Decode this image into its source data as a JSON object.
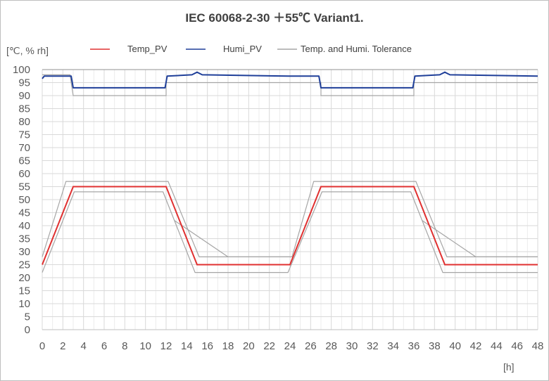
{
  "chart_data": {
    "type": "line",
    "title": "IEC 60068-2-30 ＋55℃ Variant1.",
    "ylabel": "[℃, % rh]",
    "xlabel": "[h]",
    "xlim": [
      0,
      48
    ],
    "ylim": [
      0,
      100
    ],
    "x_ticks": [
      "0",
      "2",
      "4",
      "6",
      "8",
      "10",
      "12",
      "14",
      "16",
      "18",
      "20",
      "22",
      "24",
      "26",
      "28",
      "30",
      "32",
      "34",
      "36",
      "38",
      "40",
      "42",
      "44",
      "46",
      "48"
    ],
    "y_ticks": [
      "0",
      "5",
      "10",
      "15",
      "20",
      "25",
      "30",
      "35",
      "40",
      "45",
      "50",
      "55",
      "60",
      "65",
      "70",
      "75",
      "80",
      "85",
      "90",
      "95",
      "100"
    ],
    "grid": true,
    "legend_position": "top",
    "colors": {
      "temp": "#e03030",
      "humi": "#1f3f99",
      "tolerance": "#a6a6a6",
      "grid": "#d9d9d9"
    },
    "series": [
      {
        "name": "Temp_PV",
        "color": "#e03030",
        "x": [
          0,
          3,
          12,
          15,
          24,
          27,
          36,
          39,
          48
        ],
        "y": [
          25,
          55,
          55,
          25,
          25,
          55,
          55,
          25,
          25
        ]
      },
      {
        "name": "Humi_PV",
        "color": "#1f3f99",
        "x": [
          0,
          0.2,
          2.8,
          3.0,
          11.9,
          12.1,
          14.5,
          15,
          15.5,
          23.9,
          24.1,
          26.8,
          27.0,
          35.9,
          36.1,
          38.5,
          39,
          39.5,
          48
        ],
        "y": [
          96.5,
          97.5,
          97.5,
          93,
          93,
          97.5,
          98,
          99,
          98,
          97.5,
          97.5,
          97.5,
          93,
          93,
          97.5,
          98,
          99,
          98,
          97.5
        ]
      },
      {
        "name": "Temp. and Humi. Tolerance",
        "color": "#a6a6a6",
        "segments": [
          {
            "x": [
              0,
              3,
              12,
              12.2,
              24,
              24.2,
              27,
              36,
              36.2,
              48
            ],
            "y": [
              100,
              100,
              100,
              100,
              100,
              100,
              100,
              100,
              100,
              100
            ]
          },
          {
            "x": [
              0,
              2.7,
              2.8,
              3.0,
              12,
              12.0,
              24,
              27,
              27.0,
              36,
              36.0,
              48
            ],
            "y": [
              98,
              98,
              95,
              90,
              90,
              95,
              95,
              95,
              90,
              90,
              95,
              95
            ]
          },
          {
            "x": [
              0,
              2.3,
              12.2,
              15.2,
              24.2,
              26.3,
              36.2,
              39.2,
              48
            ],
            "y": [
              28,
              57,
              57,
              28,
              28,
              57,
              57,
              28,
              28
            ]
          },
          {
            "x": [
              0,
              3.1,
              11.7,
              14.8,
              23.8,
              27.1,
              35.7,
              38.8,
              48
            ],
            "y": [
              22,
              53,
              53,
              22,
              22,
              53,
              53,
              22,
              22
            ]
          },
          {
            "x": [
              12.8,
              18,
              24
            ],
            "y": [
              42,
              28,
              28
            ]
          },
          {
            "x": [
              36.8,
              42,
              48
            ],
            "y": [
              42,
              28,
              28
            ]
          }
        ]
      }
    ]
  }
}
